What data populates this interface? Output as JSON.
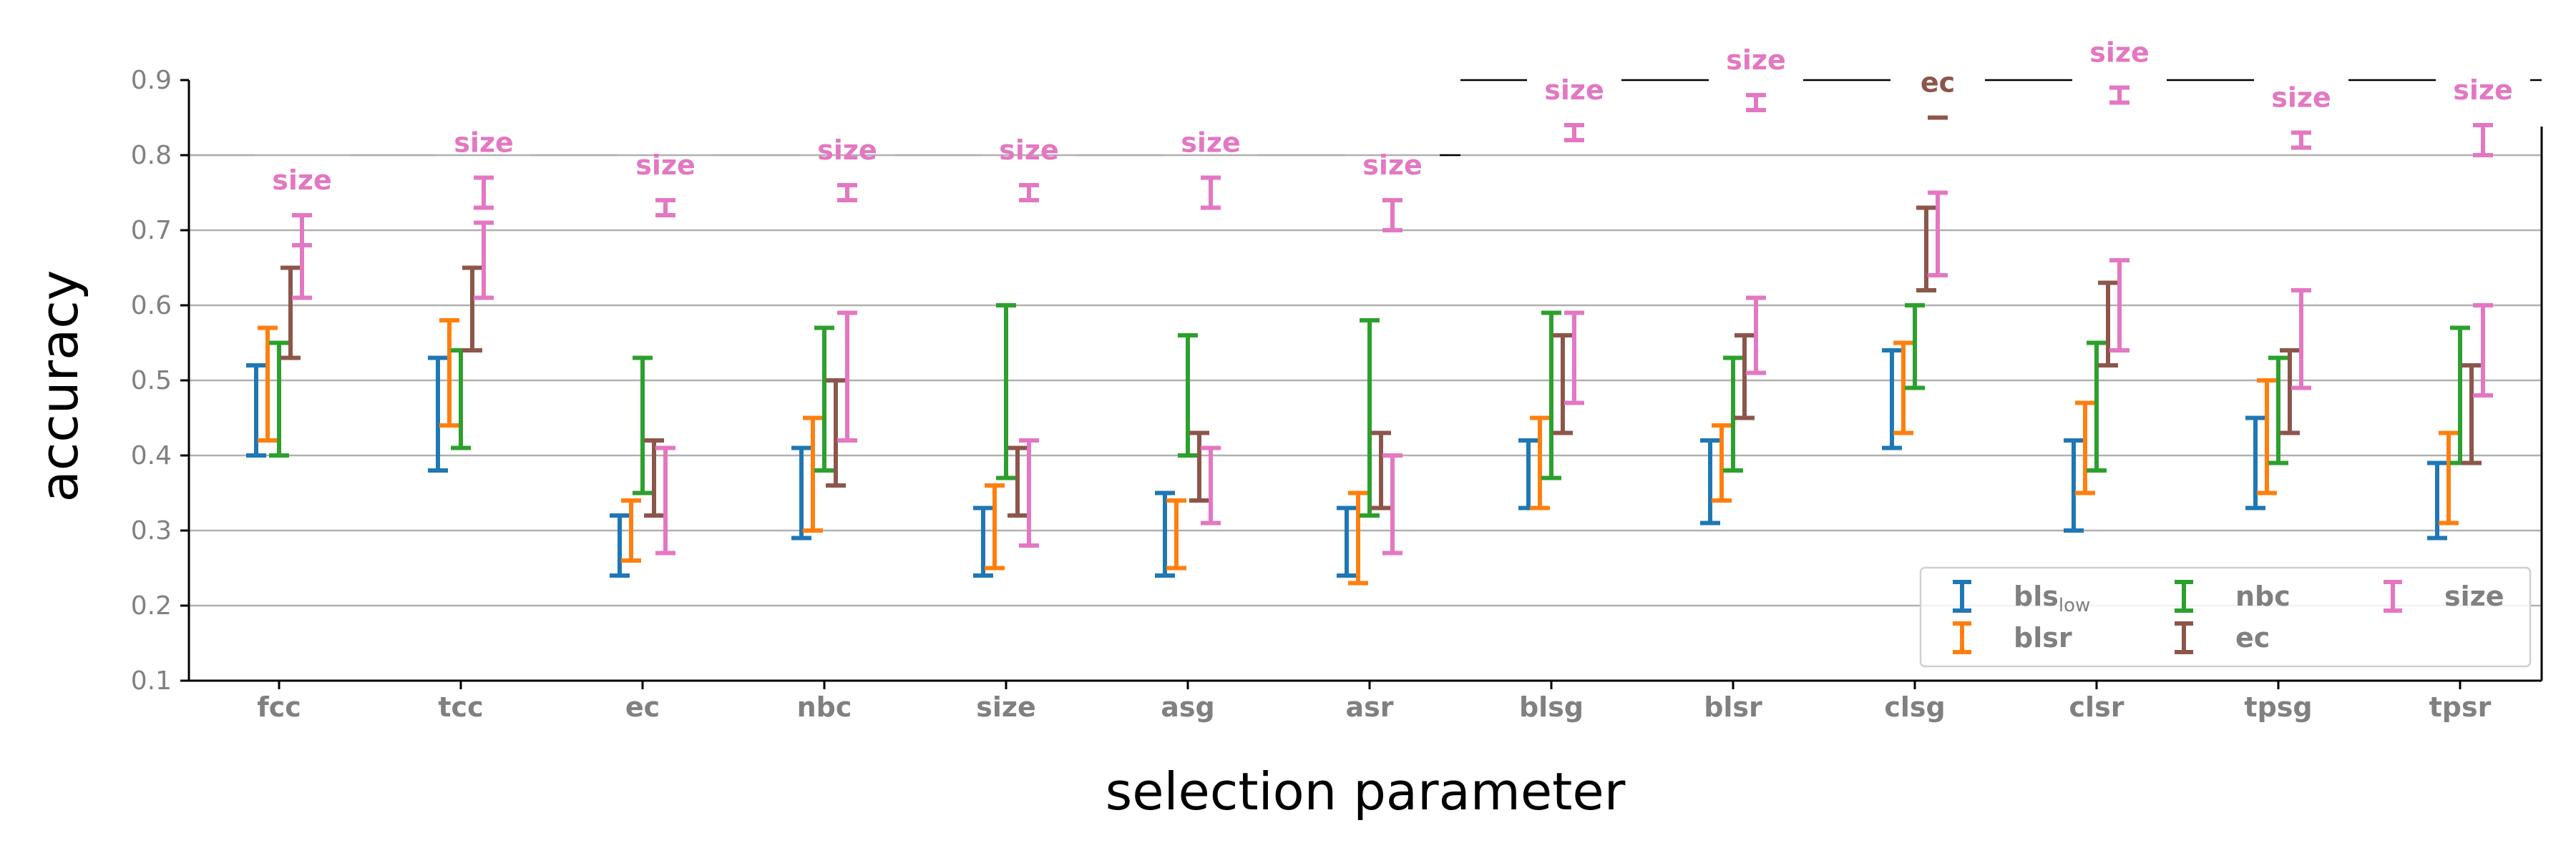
{
  "chart_data": {
    "type": "errorbar",
    "xlabel": "selection parameter",
    "ylabel": "accuracy",
    "ylim": [
      0.1,
      0.9
    ],
    "yticks": [
      "0.1",
      "0.2",
      "0.3",
      "0.4",
      "0.5",
      "0.6",
      "0.7",
      "0.8",
      "0.9"
    ],
    "grid": "horizontal",
    "legend_position": "lower-right",
    "categories": [
      "fcc",
      "tcc",
      "ec",
      "nbc",
      "size",
      "asg",
      "asr",
      "blsg",
      "blsr",
      "clsg",
      "clsr",
      "tpsg",
      "tpsr"
    ],
    "series": [
      {
        "key": "bls_low",
        "name": "bls",
        "subscript": "low",
        "color": "#1f77b4",
        "ranges": [
          [
            0.4,
            0.52
          ],
          [
            0.38,
            0.53
          ],
          [
            0.24,
            0.32
          ],
          [
            0.29,
            0.41
          ],
          [
            0.24,
            0.33
          ],
          [
            0.24,
            0.35
          ],
          [
            0.24,
            0.33
          ],
          [
            0.33,
            0.42
          ],
          [
            0.31,
            0.42
          ],
          [
            0.41,
            0.54
          ],
          [
            0.3,
            0.42
          ],
          [
            0.33,
            0.45
          ],
          [
            0.29,
            0.39
          ]
        ]
      },
      {
        "key": "blsr",
        "name": "blsr",
        "subscript": "",
        "color": "#ff7f0e",
        "ranges": [
          [
            0.42,
            0.57
          ],
          [
            0.44,
            0.58
          ],
          [
            0.26,
            0.34
          ],
          [
            0.3,
            0.45
          ],
          [
            0.25,
            0.36
          ],
          [
            0.25,
            0.34
          ],
          [
            0.23,
            0.35
          ],
          [
            0.33,
            0.45
          ],
          [
            0.34,
            0.44
          ],
          [
            0.43,
            0.55
          ],
          [
            0.35,
            0.47
          ],
          [
            0.35,
            0.5
          ],
          [
            0.31,
            0.43
          ]
        ]
      },
      {
        "key": "nbc",
        "name": "nbc",
        "subscript": "",
        "color": "#2ca02c",
        "ranges": [
          [
            0.4,
            0.55
          ],
          [
            0.41,
            0.54
          ],
          [
            0.35,
            0.53
          ],
          [
            0.38,
            0.57
          ],
          [
            0.37,
            0.6
          ],
          [
            0.4,
            0.56
          ],
          [
            0.32,
            0.58
          ],
          [
            0.37,
            0.59
          ],
          [
            0.38,
            0.53
          ],
          [
            0.49,
            0.6
          ],
          [
            0.38,
            0.55
          ],
          [
            0.39,
            0.53
          ],
          [
            0.39,
            0.57
          ]
        ]
      },
      {
        "key": "ec",
        "name": "ec",
        "subscript": "",
        "color": "#8c564b",
        "ranges": [
          [
            0.53,
            0.65
          ],
          [
            0.54,
            0.65
          ],
          [
            0.32,
            0.42
          ],
          [
            0.36,
            0.5
          ],
          [
            0.32,
            0.41
          ],
          [
            0.34,
            0.43
          ],
          [
            0.33,
            0.43
          ],
          [
            0.43,
            0.56
          ],
          [
            0.45,
            0.56
          ],
          [
            0.62,
            0.73
          ],
          [
            0.52,
            0.63
          ],
          [
            0.43,
            0.54
          ],
          [
            0.39,
            0.52
          ]
        ]
      },
      {
        "key": "size",
        "name": "size",
        "subscript": "",
        "color": "#e377c2",
        "ranges": [
          [
            0.61,
            0.72
          ],
          [
            0.61,
            0.71
          ],
          [
            0.27,
            0.41
          ],
          [
            0.42,
            0.59
          ],
          [
            0.28,
            0.42
          ],
          [
            0.31,
            0.41
          ],
          [
            0.27,
            0.4
          ],
          [
            0.47,
            0.59
          ],
          [
            0.51,
            0.61
          ],
          [
            0.64,
            0.75
          ],
          [
            0.54,
            0.66
          ],
          [
            0.49,
            0.62
          ],
          [
            0.48,
            0.6
          ]
        ]
      }
    ],
    "best": [
      {
        "category": "fcc",
        "label": "size",
        "series": "size",
        "range": [
          0.68,
          0.72
        ]
      },
      {
        "category": "tcc",
        "label": "size",
        "series": "size",
        "range": [
          0.73,
          0.77
        ]
      },
      {
        "category": "ec",
        "label": "size",
        "series": "size",
        "range": [
          0.72,
          0.74
        ]
      },
      {
        "category": "nbc",
        "label": "size",
        "series": "size",
        "range": [
          0.74,
          0.76
        ]
      },
      {
        "category": "size",
        "label": "size",
        "series": "size",
        "range": [
          0.74,
          0.76
        ]
      },
      {
        "category": "asg",
        "label": "size",
        "series": "size",
        "range": [
          0.73,
          0.77
        ]
      },
      {
        "category": "asr",
        "label": "size",
        "series": "size",
        "range": [
          0.7,
          0.74
        ]
      },
      {
        "category": "blsg",
        "label": "size",
        "series": "size",
        "range": [
          0.82,
          0.84
        ]
      },
      {
        "category": "blsr",
        "label": "size",
        "series": "size",
        "range": [
          0.86,
          0.88
        ]
      },
      {
        "category": "clsg",
        "label": "ec",
        "series": "ec",
        "range": [
          0.85,
          0.85
        ]
      },
      {
        "category": "clsr",
        "label": "size",
        "series": "size",
        "range": [
          0.87,
          0.89
        ]
      },
      {
        "category": "tpsg",
        "label": "size",
        "series": "size",
        "range": [
          0.81,
          0.83
        ]
      },
      {
        "category": "tpsr",
        "label": "size",
        "series": "size",
        "range": [
          0.8,
          0.84
        ]
      }
    ],
    "best_line_levels": [
      0.8,
      0.8,
      0.8,
      0.8,
      0.8,
      0.8,
      0.8,
      0.9,
      0.9,
      0.9,
      0.9,
      0.9,
      0.9
    ]
  }
}
